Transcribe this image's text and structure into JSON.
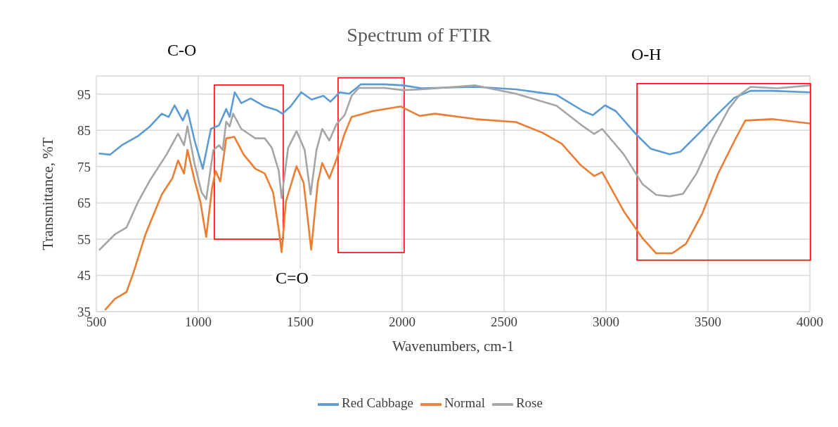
{
  "chart_data": {
    "type": "line",
    "title": "Spectrum of FTIR",
    "xlabel": "Wavenumbers, cm-1",
    "ylabel": "Transmittance, %T",
    "annotations": [
      "C-O",
      "C=O",
      "O-H"
    ],
    "xlim": [
      500,
      4000
    ],
    "xticks": [
      500,
      1000,
      1500,
      2000,
      2500,
      3000,
      3500,
      4000
    ],
    "ylim": [
      35,
      100
    ],
    "yticks": [
      35,
      45,
      55,
      65,
      75,
      85,
      95
    ],
    "grid": true,
    "legend": "bottom",
    "marker": "none",
    "line_style": "solid",
    "series": [
      {
        "name": "Red Cabbage",
        "color": "#5b9bd5",
        "x": [
          516,
          568,
          625,
          706,
          763,
          821,
          855,
          884,
          924,
          947,
          982,
          1022,
          1062,
          1102,
          1137,
          1154,
          1179,
          1211,
          1257,
          1326,
          1384,
          1413,
          1453,
          1505,
          1556,
          1614,
          1648,
          1694,
          1740,
          1798,
          1913,
          2005,
          2095,
          2360,
          2558,
          2757,
          2889,
          2935,
          2995,
          3048,
          3153,
          3220,
          3312,
          3365,
          3458,
          3550,
          3630,
          3709,
          3815,
          4000
        ],
        "values": [
          78.6,
          78.3,
          80.9,
          83.5,
          86.1,
          89.6,
          88.7,
          91.9,
          87.7,
          90.6,
          82.2,
          74.4,
          85.4,
          86.4,
          90.9,
          88.7,
          95.5,
          92.5,
          93.8,
          91.6,
          90.6,
          89.6,
          91.6,
          95.5,
          93.5,
          94.5,
          92.9,
          95.5,
          95.1,
          97.7,
          97.7,
          97.4,
          96.6,
          97,
          96.3,
          94.8,
          90.3,
          89.2,
          91.9,
          90.3,
          83.6,
          79.9,
          78.4,
          79.1,
          84.3,
          89.6,
          94,
          95.9,
          95.9,
          95.5
        ]
      },
      {
        "name": "Normal",
        "color": "#ed7d31",
        "x": [
          545,
          591,
          648,
          683,
          741,
          821,
          873,
          901,
          930,
          947,
          982,
          1010,
          1039,
          1068,
          1085,
          1108,
          1137,
          1177,
          1223,
          1280,
          1326,
          1367,
          1395,
          1409,
          1430,
          1482,
          1517,
          1554,
          1586,
          1608,
          1643,
          1678,
          1718,
          1752,
          1855,
          1993,
          2085,
          2161,
          2360,
          2558,
          2690,
          2783,
          2876,
          2942,
          2981,
          3087,
          3180,
          3246,
          3325,
          3392,
          3471,
          3550,
          3630,
          3683,
          3815,
          4000
        ],
        "values": [
          35.6,
          38.5,
          40.4,
          45.9,
          56.3,
          67.3,
          71.8,
          76.7,
          73.1,
          79.6,
          71.2,
          65.4,
          55.6,
          69.2,
          73.8,
          70.9,
          82.8,
          83.2,
          78.3,
          74.4,
          73.1,
          67.9,
          57.6,
          51.4,
          65.4,
          75.1,
          70.5,
          52.1,
          70.5,
          76,
          71.8,
          77,
          84.1,
          88.7,
          90.3,
          91.6,
          89,
          89.6,
          88.1,
          87.3,
          84.3,
          81.3,
          75.4,
          72.4,
          73.5,
          62.7,
          55.2,
          51.1,
          51.1,
          53.7,
          61.9,
          73.1,
          82.1,
          87.7,
          88.1,
          86.9
        ]
      },
      {
        "name": "Rose",
        "color": "#a5a5a5",
        "x": [
          516,
          591,
          648,
          706,
          763,
          844,
          901,
          930,
          947,
          982,
          1016,
          1039,
          1074,
          1102,
          1120,
          1137,
          1154,
          1171,
          1211,
          1280,
          1326,
          1361,
          1395,
          1409,
          1441,
          1482,
          1522,
          1551,
          1580,
          1608,
          1643,
          1678,
          1718,
          1752,
          1787,
          1913,
          2005,
          2095,
          2360,
          2558,
          2757,
          2876,
          2942,
          2981,
          3087,
          3180,
          3246,
          3312,
          3378,
          3444,
          3524,
          3603,
          3656,
          3709,
          3841,
          4000
        ],
        "values": [
          52.1,
          56.3,
          58.2,
          65.4,
          71.2,
          78.3,
          84.1,
          80.9,
          86.1,
          75.7,
          68,
          66,
          79.6,
          80.9,
          79.6,
          87.4,
          86.1,
          89.6,
          85.4,
          82.8,
          82.8,
          80.2,
          73.8,
          66.3,
          80.2,
          84.8,
          79.6,
          67.3,
          79.6,
          85.4,
          82.2,
          86.7,
          89.2,
          94.5,
          96.7,
          96.7,
          96.1,
          96.3,
          97.4,
          95.1,
          91.8,
          86.6,
          84,
          85.4,
          78.4,
          70.1,
          67.2,
          66.8,
          67.5,
          73.1,
          82.8,
          91,
          94.8,
          97,
          96.6,
          97.4
        ]
      }
    ]
  }
}
